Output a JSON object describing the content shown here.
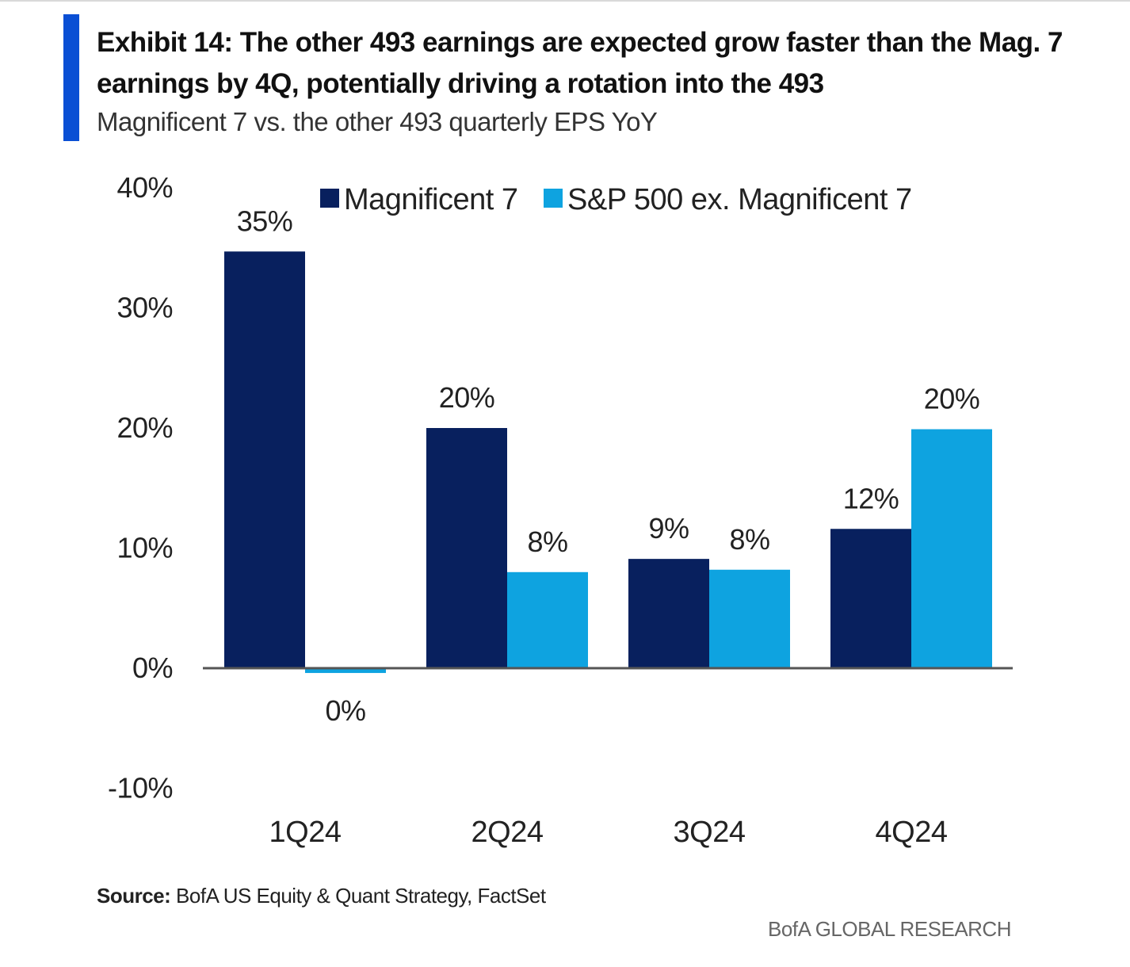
{
  "header": {
    "title": "Exhibit 14: The other 493 earnings are expected grow faster than the Mag. 7 earnings by 4Q, potentially driving a rotation into the 493",
    "subtitle": "Magnificent 7 vs. the other 493 quarterly EPS YoY",
    "accent_color": "#0a4fd4"
  },
  "footer": {
    "source_label": "Source:",
    "source_text": "BofA US Equity & Quant Strategy, FactSet",
    "brand": "BofA GLOBAL RESEARCH"
  },
  "chart_data": {
    "type": "bar",
    "categories": [
      "1Q24",
      "2Q24",
      "3Q24",
      "4Q24"
    ],
    "series": [
      {
        "name": "Magnificent 7",
        "color": "#08205e",
        "values": [
          34.7,
          20,
          9.1,
          11.6
        ],
        "labels": [
          "35%",
          "20%",
          "9%",
          "12%"
        ]
      },
      {
        "name": "S&P 500 ex. Magnificent 7",
        "color": "#0ea3e0",
        "values": [
          -0.4,
          8,
          8.2,
          19.9
        ],
        "labels": [
          "0%",
          "8%",
          "8%",
          "20%"
        ]
      }
    ],
    "y_ticks": [
      40,
      30,
      20,
      10,
      0,
      -10
    ],
    "y_tick_labels": [
      "40%",
      "30%",
      "20%",
      "10%",
      "0%",
      "-10%"
    ],
    "ylim": [
      -10,
      40
    ],
    "grid": false,
    "legend": "top"
  }
}
